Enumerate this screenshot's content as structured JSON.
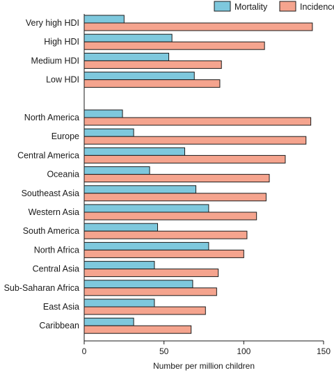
{
  "chart_data": {
    "type": "bar",
    "orientation": "horizontal",
    "xlabel": "Number per million children",
    "xlim": [
      0,
      150
    ],
    "xticks": [
      0,
      50,
      100,
      150
    ],
    "legend_position": "top-right",
    "grid": false,
    "categories": [
      "Very high HDI",
      "High HDI",
      "Medium HDI",
      "Low HDI",
      "",
      "North America",
      "Europe",
      "Central America",
      "Oceania",
      "Southeast Asia",
      "Western Asia",
      "South America",
      "North Africa",
      "Central Asia",
      "Sub-Saharan Africa",
      "East Asia",
      "Caribbean"
    ],
    "series": [
      {
        "name": "Mortality",
        "color": "#7ec8dd",
        "values": [
          25,
          55,
          53,
          69,
          null,
          24,
          31,
          63,
          41,
          70,
          78,
          46,
          78,
          44,
          68,
          44,
          31
        ]
      },
      {
        "name": "Incidence",
        "color": "#f5a48e",
        "values": [
          143,
          113,
          86,
          85,
          null,
          142,
          139,
          126,
          116,
          114,
          108,
          102,
          100,
          84,
          83,
          76,
          67
        ]
      }
    ]
  }
}
